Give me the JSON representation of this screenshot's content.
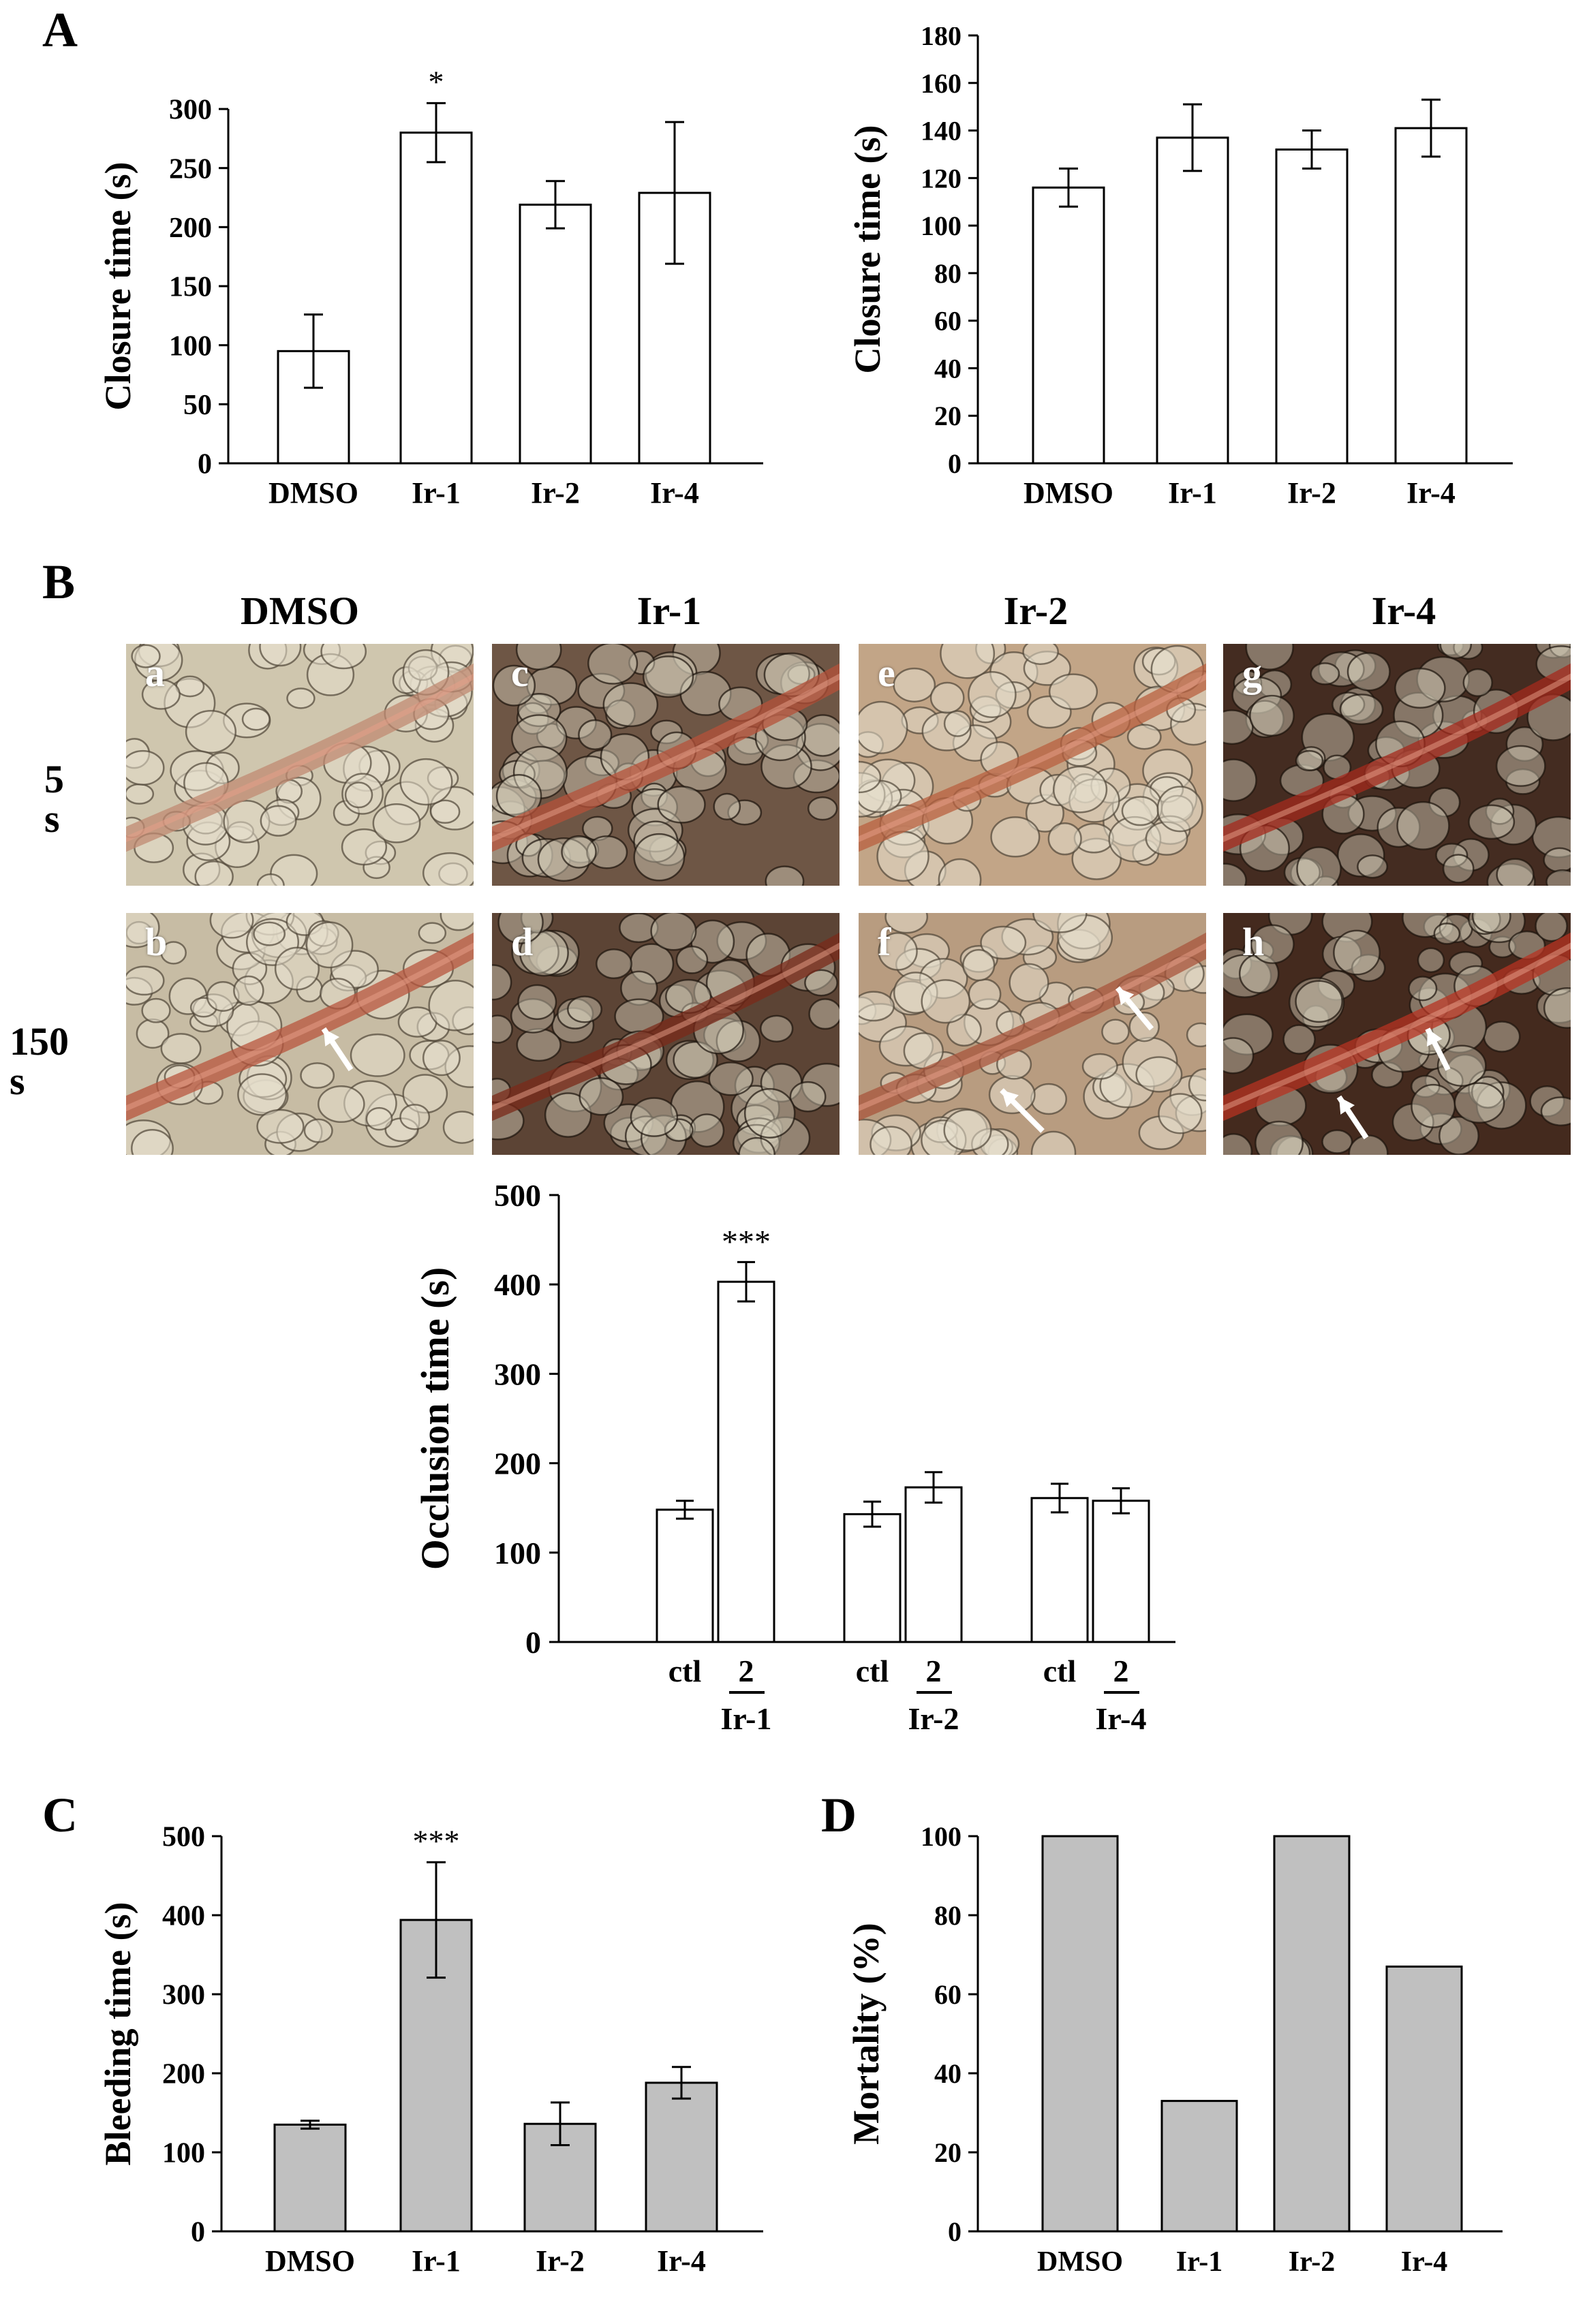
{
  "panel_labels": {
    "a": "A",
    "b": "B",
    "c": "C",
    "d": "D"
  },
  "micrographs": {
    "columns": [
      "DMSO",
      "Ir-1",
      "Ir-2",
      "Ir-4"
    ],
    "rows": [
      "5 s",
      "150 s"
    ],
    "tags": [
      "a",
      "c",
      "e",
      "g",
      "b",
      "d",
      "f",
      "h"
    ],
    "colors": {
      "light_tissue": "#c9bfa6",
      "vessel_red": "#b5523a",
      "dark_bg": "#3a1410"
    }
  },
  "chart_data": [
    {
      "id": "A-left",
      "type": "bar",
      "categories": [
        "DMSO",
        "Ir-1",
        "Ir-2",
        "Ir-4"
      ],
      "values": [
        95,
        280,
        219,
        229
      ],
      "errors": [
        31,
        25,
        20,
        60
      ],
      "annotations": [
        "",
        "*",
        "",
        ""
      ],
      "ylabel": "Closure time (s)",
      "ylim": [
        0,
        300
      ],
      "yticks": [
        0,
        50,
        100,
        150,
        200,
        250,
        300
      ],
      "bar_color": "#ffffff",
      "grid": false
    },
    {
      "id": "A-right",
      "type": "bar",
      "categories": [
        "DMSO",
        "Ir-1",
        "Ir-2",
        "Ir-4"
      ],
      "values": [
        116,
        137,
        132,
        141
      ],
      "errors": [
        8,
        14,
        8,
        12
      ],
      "annotations": [
        "",
        "",
        "",
        ""
      ],
      "ylabel": "Closure time (s)",
      "ylim": [
        0,
        180
      ],
      "yticks": [
        0,
        20,
        40,
        60,
        80,
        100,
        120,
        140,
        160,
        180
      ],
      "bar_color": "#ffffff",
      "grid": false
    },
    {
      "id": "B-occlusion",
      "type": "bar",
      "groups": [
        "Ir-1",
        "Ir-2",
        "Ir-4"
      ],
      "subcategories": [
        "ctl",
        "2"
      ],
      "series": [
        {
          "values": [
            148,
            143,
            161
          ]
        },
        {
          "values": [
            403,
            173,
            158
          ]
        }
      ],
      "errors": [
        [
          10,
          14,
          16
        ],
        [
          22,
          17,
          14
        ]
      ],
      "annotations": [
        "",
        "***",
        "",
        "",
        "",
        ""
      ],
      "ylabel": "Occlusion time (s)",
      "ylim": [
        0,
        500
      ],
      "yticks": [
        0,
        100,
        200,
        300,
        400,
        500
      ],
      "bar_color": "#ffffff",
      "grid": false
    },
    {
      "id": "C",
      "type": "bar",
      "categories": [
        "DMSO",
        "Ir-1",
        "Ir-2",
        "Ir-4"
      ],
      "values": [
        135,
        394,
        136,
        188
      ],
      "errors": [
        5,
        73,
        27,
        20
      ],
      "annotations": [
        "",
        "***",
        "",
        ""
      ],
      "ylabel": "Bleeding time (s)",
      "ylim": [
        0,
        500
      ],
      "yticks": [
        0,
        100,
        200,
        300,
        400,
        500
      ],
      "bar_color": "#c0c0c0",
      "grid": false
    },
    {
      "id": "D",
      "type": "bar",
      "categories": [
        "DMSO",
        "Ir-1",
        "Ir-2",
        "Ir-4"
      ],
      "values": [
        100,
        33,
        100,
        67
      ],
      "errors": [
        0,
        0,
        0,
        0
      ],
      "annotations": [
        "",
        "",
        "",
        ""
      ],
      "ylabel": "Mortality  (%)",
      "ylim": [
        0,
        100
      ],
      "yticks": [
        0,
        20,
        40,
        60,
        80,
        100
      ],
      "bar_color": "#c0c0c0",
      "grid": false
    }
  ]
}
